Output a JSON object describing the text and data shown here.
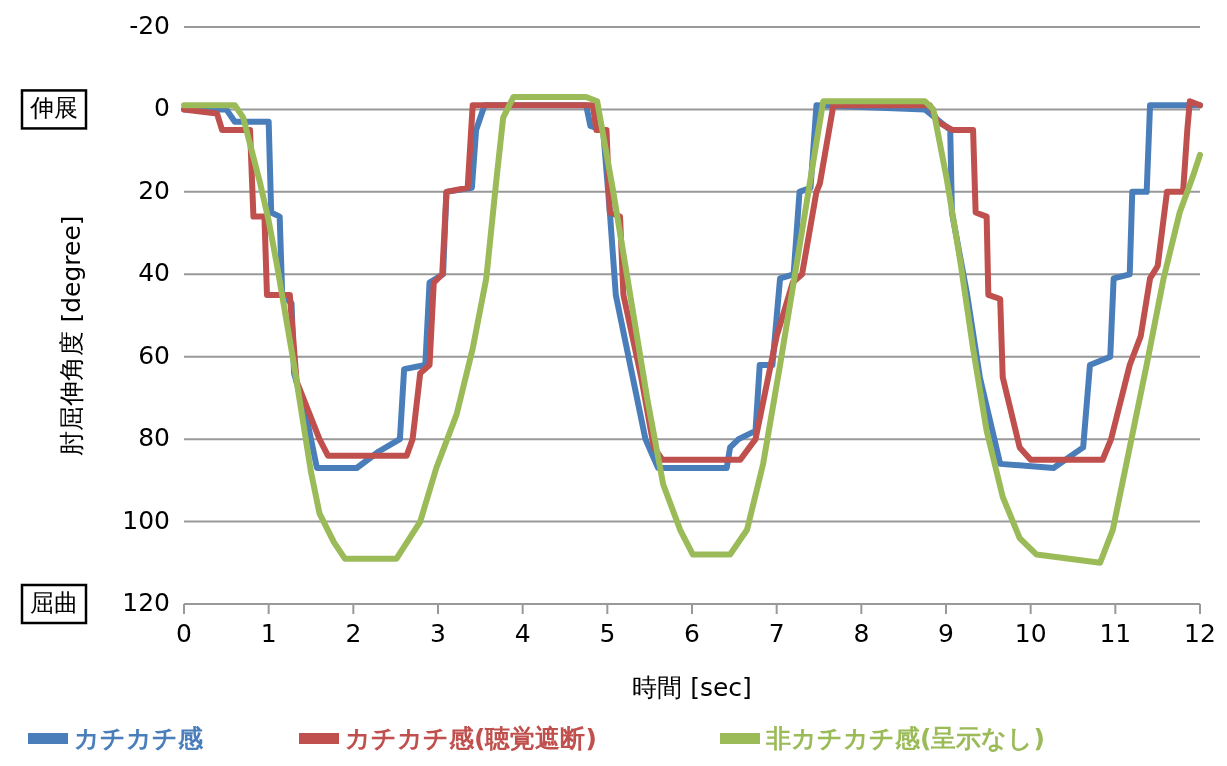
{
  "chart_data": {
    "type": "line",
    "xlabel": "時間 [sec]",
    "ylabel": "肘屈伸角度 [degree]",
    "xlim": [
      0,
      12
    ],
    "xticks": [
      0,
      1,
      2,
      3,
      4,
      5,
      6,
      7,
      8,
      9,
      10,
      11,
      12
    ],
    "ylim": [
      120,
      -20
    ],
    "yticks": [
      -20,
      0,
      20,
      40,
      60,
      80,
      100,
      120
    ],
    "grid": "y",
    "legend": "bottom",
    "marker": "none",
    "line_style": "solid",
    "annotations": [
      "伸展",
      "屈曲"
    ],
    "series": [
      {
        "name": "カチカチ感",
        "color": "#4a7ebb",
        "x": [
          0,
          0.5,
          0.6,
          1.0,
          1.03,
          1.13,
          1.16,
          1.27,
          1.3,
          1.45,
          1.57,
          2.04,
          2.3,
          2.55,
          2.6,
          2.85,
          2.9,
          3.06,
          3.1,
          3.4,
          3.45,
          3.55,
          4.75,
          4.8,
          4.95,
          5.03,
          5.1,
          5.3,
          5.45,
          5.6,
          6.41,
          6.45,
          6.55,
          6.75,
          6.8,
          6.95,
          7.04,
          7.2,
          7.27,
          7.4,
          7.47,
          8.75,
          9.05,
          9.07,
          9.25,
          9.4,
          9.64,
          10.27,
          10.62,
          10.7,
          10.94,
          10.98,
          11.17,
          11.2,
          11.37,
          11.41,
          12
        ],
        "values": [
          0,
          0,
          3,
          3,
          25,
          26,
          45,
          47,
          64,
          75,
          87,
          87,
          83,
          80,
          63,
          62,
          42,
          40,
          20,
          19,
          5,
          -1,
          -1,
          4,
          5,
          25,
          45,
          65,
          80,
          87,
          87,
          82,
          80,
          78,
          62,
          62,
          41,
          40,
          20,
          19,
          -1,
          0,
          5,
          25,
          45,
          65,
          86,
          87,
          82,
          62,
          60,
          41,
          40,
          20,
          20,
          -1,
          -1
        ]
      },
      {
        "name": "カチカチ感(聴覚遮断)",
        "color": "#c0504d",
        "x": [
          0,
          0.39,
          0.45,
          0.78,
          0.82,
          0.95,
          0.98,
          1.25,
          1.33,
          1.6,
          1.7,
          2.63,
          2.7,
          2.79,
          2.9,
          2.95,
          3.05,
          3.1,
          3.35,
          3.41,
          4.83,
          4.87,
          4.99,
          5.03,
          5.15,
          5.19,
          5.4,
          5.55,
          5.65,
          6.57,
          6.75,
          6.92,
          7.0,
          7.19,
          7.3,
          7.47,
          7.51,
          7.67,
          8.81,
          8.9,
          9.08,
          9.32,
          9.35,
          9.48,
          9.5,
          9.64,
          9.67,
          9.87,
          10.0,
          10.85,
          10.95,
          11.17,
          11.3,
          11.41,
          11.5,
          11.61,
          11.8,
          11.85,
          11.88,
          12
        ],
        "values": [
          0,
          1,
          5,
          5,
          26,
          26,
          45,
          45,
          66,
          80,
          84,
          84,
          80,
          64,
          62,
          42,
          40,
          20,
          19,
          -1,
          -1,
          5,
          5,
          25,
          26,
          45,
          65,
          82,
          85,
          85,
          80,
          63,
          55,
          42,
          40,
          20,
          18,
          -1,
          -1,
          3,
          5,
          5,
          25,
          26,
          45,
          46,
          65,
          82,
          85,
          85,
          80,
          62,
          55,
          41,
          38,
          20,
          20,
          5,
          -2,
          -1
        ]
      },
      {
        "name": "非カチカチ感(呈示なし)",
        "color": "#9bbb59",
        "x": [
          0,
          0.6,
          0.7,
          0.8,
          0.9,
          1.0,
          1.1,
          1.2,
          1.3,
          1.4,
          1.5,
          1.6,
          1.77,
          1.9,
          2.51,
          2.79,
          2.98,
          3.22,
          3.41,
          3.57,
          3.69,
          3.77,
          3.89,
          4.75,
          4.88,
          5.07,
          5.27,
          5.47,
          5.66,
          5.86,
          6.01,
          6.45,
          6.65,
          6.84,
          7.04,
          7.24,
          7.43,
          7.55,
          8.75,
          8.85,
          9.01,
          9.17,
          9.32,
          9.48,
          9.67,
          9.87,
          10.07,
          10.82,
          10.97,
          11.17,
          11.37,
          11.57,
          11.76,
          11.92,
          12
        ],
        "values": [
          -1,
          -1,
          2,
          10,
          18,
          27,
          38,
          50,
          62,
          75,
          88,
          98,
          105,
          109,
          109,
          100,
          87,
          74,
          58,
          41,
          17,
          2,
          -3,
          -3,
          -2,
          20,
          45,
          70,
          91,
          102,
          108,
          108,
          102,
          86,
          62,
          37,
          13,
          -2,
          -2,
          0,
          17,
          37,
          58,
          78,
          94,
          104,
          108,
          110,
          102,
          82,
          62,
          41,
          25,
          16,
          11
        ]
      }
    ]
  }
}
